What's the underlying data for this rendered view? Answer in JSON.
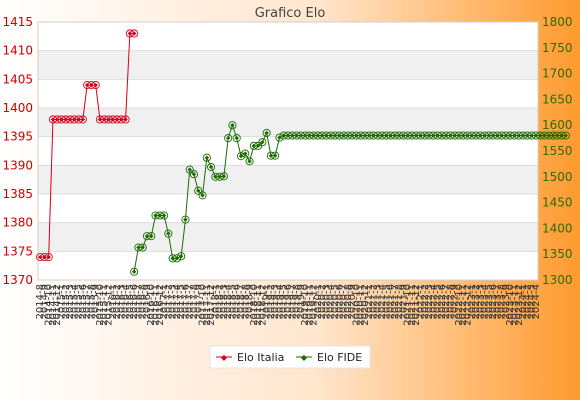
{
  "chart_data": {
    "type": "line",
    "title": "Grafico Elo",
    "grid": true,
    "legend_position": "bottom-center",
    "colors": {
      "italia": "#d9001b",
      "fide": "#1a6b00",
      "left_axis_text": "#cc0000",
      "right_axis_text": "#2e6b00",
      "band": "#f0f0f0",
      "plot_bg": "#ffffff"
    },
    "y_left": {
      "min": 1370,
      "max": 1415,
      "ticks": [
        "1370",
        "1375",
        "1380",
        "1385",
        "1390",
        "1395",
        "1400",
        "1405",
        "1410",
        "1415"
      ]
    },
    "y_right": {
      "min": 1300,
      "max": 1800,
      "ticks": [
        "1300",
        "1350",
        "1400",
        "1450",
        "1500",
        "1550",
        "1600",
        "1650",
        "1700",
        "1750",
        "1800"
      ]
    },
    "x_labels": [
      "2014-8",
      "2014-9",
      "2014-10",
      "2014-11",
      "2014-12",
      "2015-1",
      "2015-2",
      "2015-3",
      "2015-4",
      "2015-5",
      "2015-6",
      "2015-7",
      "2015-8",
      "2015-9",
      "2015-10",
      "2015-11",
      "2015-12",
      "2016-1",
      "2016-2",
      "2016-3",
      "2016-4",
      "2016-5",
      "2016-6",
      "2016-7",
      "2016-8",
      "2016-9",
      "2016-10",
      "2016-11",
      "2016-12",
      "2017-1",
      "2017-2",
      "2017-3",
      "2017-4",
      "2017-5",
      "2017-6",
      "2017-7",
      "2017-8",
      "2017-9",
      "2017-10",
      "2017-11",
      "2017-12",
      "2018-1",
      "2018-2",
      "2018-3",
      "2018-4",
      "2018-5",
      "2018-6",
      "2018-7",
      "2018-8",
      "2018-9",
      "2018-10",
      "2018-11",
      "2018-12",
      "2019-1",
      "2019-2",
      "2019-3",
      "2019-4",
      "2019-5",
      "2019-6",
      "2019-7",
      "2019-8",
      "2019-9",
      "2019-10",
      "2019-11",
      "2019-12",
      "2020-1",
      "2020-2",
      "2020-3",
      "2020-4",
      "2020-5",
      "2020-6",
      "2020-7",
      "2020-8",
      "2020-9",
      "2020-10",
      "2020-11",
      "2020-12",
      "2021-1",
      "2021-2",
      "2021-3",
      "2021-4",
      "2021-5",
      "2021-6",
      "2021-7",
      "2021-8",
      "2021-9",
      "2021-10",
      "2021-11",
      "2021-12",
      "2022-1",
      "2022-2",
      "2022-3",
      "2022-4",
      "2022-5",
      "2022-6",
      "2022-7",
      "2022-8",
      "2022-9",
      "2022-10",
      "2022-11",
      "2022-12",
      "2023-1",
      "2023-2",
      "2023-3",
      "2023-4",
      "2023-5",
      "2023-6",
      "2023-7",
      "2023-8",
      "2023-9",
      "2023-10",
      "2023-11",
      "2023-12",
      "2024-1",
      "2024-2",
      "2024-3",
      "2024-4"
    ],
    "series": [
      {
        "name": "Elo Italia",
        "axis": "left",
        "values": [
          1374,
          1374,
          1374,
          1398,
          1398,
          1398,
          1398,
          1398,
          1398,
          1398,
          1398,
          1404,
          1404,
          1404,
          1398,
          1398,
          1398,
          1398,
          1398,
          1398,
          1398,
          1413,
          1413
        ]
      },
      {
        "name": "Elo FIDE",
        "axis": "right",
        "start_index": 22,
        "values": [
          1316,
          1363,
          1363,
          1385,
          1385,
          1425,
          1425,
          1425,
          1390,
          1342,
          1342,
          1346,
          1417,
          1514,
          1505,
          1473,
          1464,
          1537,
          1519,
          1500,
          1500,
          1501,
          1575,
          1600,
          1575,
          1540,
          1545,
          1530,
          1560,
          1560,
          1567,
          1585,
          1541,
          1541,
          1576,
          1580,
          1580,
          1580,
          1580,
          1580,
          1580,
          1580,
          1580,
          1580,
          1580,
          1580,
          1580,
          1580,
          1580,
          1580,
          1580,
          1580,
          1580,
          1580,
          1580,
          1580,
          1580,
          1580,
          1580,
          1580,
          1580,
          1580,
          1580,
          1580,
          1580,
          1580,
          1580,
          1580,
          1580,
          1580,
          1580,
          1580,
          1580,
          1580,
          1580,
          1580,
          1580,
          1580,
          1580,
          1580,
          1580,
          1580,
          1580,
          1580,
          1580,
          1580,
          1580,
          1580,
          1580,
          1580,
          1580,
          1580,
          1580,
          1580,
          1580,
          1580,
          1580,
          1580,
          1580,
          1580,
          1580,
          1580
        ]
      }
    ]
  }
}
